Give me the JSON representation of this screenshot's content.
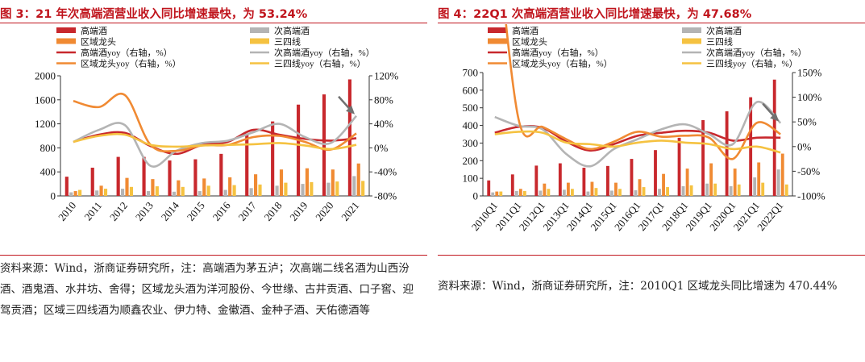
{
  "figures": [
    {
      "id": "fig3",
      "title": "图 3：21 年次高端酒营业收入同比增速最快，为 53.24%",
      "source": "资料来源：Wind，浙商证券研究所，注：高端酒为茅五泸；次高端二线名酒为山西汾酒、酒鬼酒、水井坊、舍得；区域龙头酒为洋河股份、今世缘、古井贡酒、口子窖、迎驾贡酒；区域三四线酒为顺鑫农业、伊力特、金徽酒、金种子酒、天佑德酒等"
    },
    {
      "id": "fig4",
      "title": "图 4：22Q1 次高端酒营业收入同比增速最快，为 47.68%",
      "source": "资料来源：Wind，浙商证券研究所，注：2010Q1 区域龙头同比增速为 470.44%"
    }
  ],
  "colors": {
    "title_red": "#c0151d",
    "high_end": "#c8282d",
    "sub_high_end": "#b4b4b4",
    "regional": "#f08a33",
    "lower_tier": "#f5c241"
  },
  "chart_data": [
    {
      "type": "bar",
      "categories": [
        "2010",
        "2011",
        "2012",
        "2013",
        "2014",
        "2015",
        "2016",
        "2017",
        "2018",
        "2019",
        "2020",
        "2021"
      ],
      "yticks_left": [
        "0",
        "400",
        "800",
        "1200",
        "1600",
        "2000"
      ],
      "yticks_right": [
        "-80%",
        "-40%",
        "0%",
        "40%",
        "80%",
        "120%"
      ],
      "ylim": [
        0,
        2000
      ],
      "y2lim": [
        -80,
        120
      ],
      "legend_position": "top",
      "legend": [
        "高端酒",
        "次高端酒",
        "区域龙头",
        "三四线",
        "高端酒yoy（右轴，%）",
        "次高端酒yoy（右轴，%）",
        "区域龙头yoy（右轴，%）",
        "三四线yoy（右轴，%）"
      ],
      "bar_series": [
        {
          "name": "高端酒",
          "color": "#c8282d",
          "values": [
            320,
            470,
            650,
            650,
            590,
            610,
            700,
            1030,
            1240,
            1520,
            1690,
            1940
          ]
        },
        {
          "name": "次高端酒",
          "color": "#b4b4b4",
          "values": [
            60,
            90,
            120,
            80,
            70,
            80,
            100,
            130,
            170,
            200,
            220,
            330
          ]
        },
        {
          "name": "区域龙头",
          "color": "#f08a33",
          "values": [
            80,
            170,
            300,
            280,
            260,
            290,
            310,
            360,
            440,
            460,
            440,
            540
          ]
        },
        {
          "name": "三四线",
          "color": "#f5c241",
          "values": [
            100,
            120,
            150,
            160,
            150,
            170,
            180,
            190,
            220,
            230,
            240,
            250
          ]
        }
      ],
      "line_series": [
        {
          "name": "高端酒yoy（右轴，%）",
          "color": "#c8282d",
          "values": [
            10,
            22,
            25,
            3,
            -10,
            5,
            10,
            30,
            22,
            15,
            12,
            16
          ]
        },
        {
          "name": "次高端酒yoy（右轴，%）",
          "color": "#b4b4b4",
          "values": [
            10,
            30,
            38,
            -30,
            -5,
            8,
            12,
            26,
            40,
            18,
            8,
            53.24
          ]
        },
        {
          "name": "区域龙头yoy（右轴，%）",
          "color": "#f08a33",
          "values": [
            78,
            68,
            88,
            5,
            -5,
            4,
            5,
            18,
            20,
            10,
            -3,
            24
          ]
        },
        {
          "name": "三四线yoy（右轴，%）",
          "color": "#f5c241",
          "values": [
            10,
            20,
            22,
            5,
            2,
            4,
            5,
            6,
            8,
            4,
            -2,
            5
          ]
        }
      ]
    },
    {
      "type": "bar",
      "categories": [
        "2010Q1",
        "2011Q1",
        "2012Q1",
        "2013Q1",
        "2014Q1",
        "2015Q1",
        "2016Q1",
        "2017Q1",
        "2018Q1",
        "2019Q1",
        "2020Q1",
        "2021Q1",
        "2022Q1"
      ],
      "yticks_left": [
        "0",
        "100",
        "200",
        "300",
        "400",
        "500",
        "600",
        "700"
      ],
      "yticks_right": [
        "-100%",
        "-50%",
        "0%",
        "50%",
        "100%",
        "150%"
      ],
      "ylim": [
        0,
        700
      ],
      "y2lim": [
        -100,
        150
      ],
      "legend_position": "top",
      "legend": [
        "高端酒",
        "次高端酒",
        "区域龙头",
        "三四线",
        "高端酒yoy（右轴，%）",
        "次高端酒yoy（右轴，%）",
        "区域龙头yoy（右轴，%）",
        "三四线yoy（右轴，%）"
      ],
      "bar_series": [
        {
          "name": "高端酒",
          "color": "#c8282d",
          "values": [
            88,
            122,
            172,
            185,
            160,
            170,
            210,
            260,
            330,
            430,
            480,
            560,
            660
          ]
        },
        {
          "name": "次高端酒",
          "color": "#b4b4b4",
          "values": [
            20,
            28,
            30,
            35,
            25,
            30,
            32,
            40,
            55,
            70,
            55,
            105,
            150
          ]
        },
        {
          "name": "区域龙头",
          "color": "#f08a33",
          "values": [
            25,
            40,
            70,
            75,
            80,
            75,
            95,
            125,
            155,
            185,
            155,
            190,
            240
          ]
        },
        {
          "name": "三四线",
          "color": "#f5c241",
          "values": [
            25,
            28,
            40,
            40,
            45,
            40,
            50,
            50,
            60,
            70,
            65,
            75,
            65
          ]
        }
      ],
      "line_series": [
        {
          "name": "高端酒yoy（右轴，%）",
          "color": "#c8282d",
          "values": [
            28,
            40,
            38,
            10,
            -8,
            5,
            22,
            28,
            32,
            28,
            12,
            18,
            18
          ]
        },
        {
          "name": "次高端酒yoy（右轴，%）",
          "color": "#b4b4b4",
          "values": [
            60,
            42,
            35,
            -15,
            -40,
            -5,
            15,
            35,
            45,
            25,
            5,
            90,
            47.68
          ]
        },
        {
          "name": "区域龙头yoy（右轴，%）",
          "color": "#f08a33",
          "values": [
            470.44,
            55,
            40,
            15,
            -5,
            10,
            30,
            20,
            22,
            18,
            -25,
            48,
            25
          ]
        },
        {
          "name": "三四线yoy（右轴，%）",
          "color": "#f5c241",
          "values": [
            25,
            30,
            28,
            8,
            5,
            0,
            8,
            12,
            8,
            5,
            -5,
            0,
            -12
          ]
        }
      ]
    }
  ]
}
